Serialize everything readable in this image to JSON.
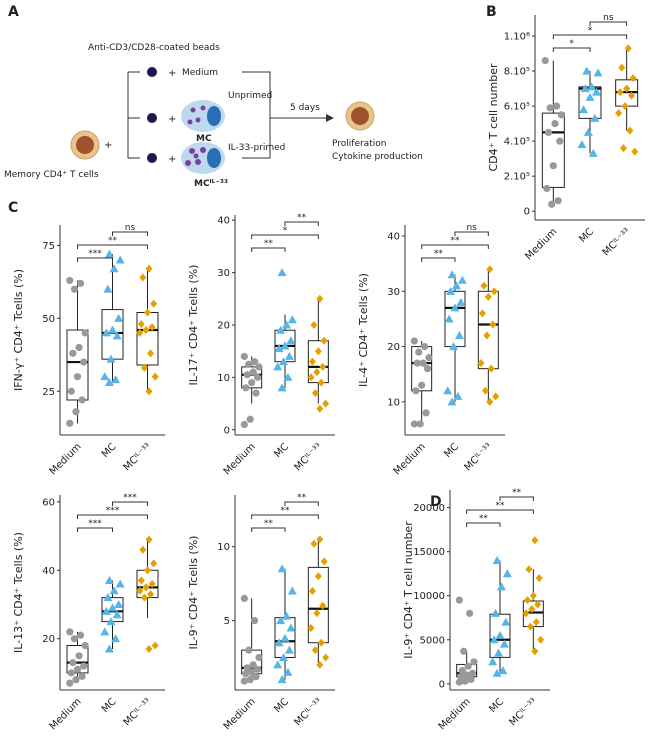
{
  "panel_labels": [
    "A",
    "B",
    "C",
    "D"
  ],
  "diagram": {
    "beads_label": "Anti-CD3/CD28-coated beads",
    "plus": "+",
    "medium_label": "Medium",
    "unprimed_label": "Unprimed",
    "mc_label": "MC",
    "primed_label": "IL-33-primed",
    "mc_il33_label": "MCᴵᴸ⁻³³",
    "cell_label": "Memory CD4⁺ T cells",
    "time_label": "5 days",
    "outcomes": [
      "Proliferation",
      "Cytokine production"
    ]
  },
  "chart_data": [
    {
      "type": "box",
      "y_label": "CD4⁺ T cell number",
      "categories": [
        "Medium",
        "MC",
        "MCᴵᴸ⁻³³"
      ],
      "ylim": [
        -50000,
        1120000
      ],
      "yticks": [
        0,
        {
          "value": 200000,
          "label": "2.10⁵"
        },
        {
          "value": 400000,
          "label": "4.10⁵"
        },
        {
          "value": 600000,
          "label": "6.10⁵"
        },
        {
          "value": 800000,
          "label": "8.10⁵"
        },
        {
          "value": 1000000,
          "label": "1.10⁶"
        }
      ],
      "grid": false,
      "boxes": [
        {
          "color": "#999999",
          "marker": "circle",
          "q1": 136000,
          "median": 450000,
          "q3": 560000,
          "whisker_low": 40000,
          "whisker_high": 860000,
          "points": [
            860000,
            600000,
            590000,
            550000,
            500000,
            450000,
            400000,
            260000,
            130000,
            60000,
            40000
          ]
        },
        {
          "color": "#56b4e9",
          "marker": "triangle",
          "q1": 530000,
          "median": 700000,
          "q3": 710000,
          "whisker_low": 330000,
          "whisker_high": 800000,
          "points": [
            800000,
            790000,
            710000,
            700000,
            680000,
            650000,
            580000,
            530000,
            450000,
            380000,
            330000
          ]
        },
        {
          "color": "#e69f00",
          "marker": "diamond",
          "q1": 600000,
          "median": 680000,
          "q3": 750000,
          "whisker_low": 460000,
          "whisker_high": 930000,
          "points": [
            930000,
            820000,
            760000,
            700000,
            680000,
            660000,
            600000,
            560000,
            460000,
            360000,
            340000
          ]
        }
      ],
      "comparisons": [
        {
          "groups": [
            "Medium",
            "MC"
          ],
          "label": "*"
        },
        {
          "groups": [
            "Medium",
            "MCᴵᴸ⁻³³"
          ],
          "label": "*"
        },
        {
          "groups": [
            "MC",
            "MCᴵᴸ⁻³³"
          ],
          "label": "ns"
        }
      ]
    },
    {
      "type": "box",
      "y_label": "IFN-γ⁺ CD4⁺ Tcells (%)",
      "categories": [
        "Medium",
        "MC",
        "MCᴵᴸ⁻³³"
      ],
      "ylim": [
        10,
        82
      ],
      "yticks": [
        25,
        50,
        75
      ],
      "grid": false,
      "boxes": [
        {
          "color": "#999999",
          "marker": "circle",
          "q1": 22,
          "median": 35,
          "q3": 46,
          "whisker_low": 14,
          "whisker_high": 63,
          "points": [
            63,
            62,
            60,
            45,
            40,
            38,
            35,
            30,
            25,
            22,
            18,
            14
          ]
        },
        {
          "color": "#56b4e9",
          "marker": "triangle",
          "q1": 36,
          "median": 45,
          "q3": 53,
          "whisker_low": 28,
          "whisker_high": 72,
          "points": [
            72,
            70,
            67,
            60,
            50,
            46,
            45,
            44,
            36,
            30,
            29,
            28
          ]
        },
        {
          "color": "#e69f00",
          "marker": "diamond",
          "q1": 34,
          "median": 46,
          "q3": 52,
          "whisker_low": 25,
          "whisker_high": 67,
          "points": [
            67,
            64,
            55,
            52,
            48,
            47,
            46,
            45,
            38,
            33,
            30,
            25
          ]
        }
      ],
      "comparisons": [
        {
          "groups": [
            "Medium",
            "MC"
          ],
          "label": "***"
        },
        {
          "groups": [
            "Medium",
            "MCᴵᴸ⁻³³"
          ],
          "label": "**"
        },
        {
          "groups": [
            "MC",
            "MCᴵᴸ⁻³³"
          ],
          "label": "ns"
        }
      ]
    },
    {
      "type": "box",
      "y_label": "IL-17⁺ CD4⁺ Tcells (%)",
      "categories": [
        "Medium",
        "MC",
        "MCᴵᴸ⁻³³"
      ],
      "ylim": [
        -1,
        41
      ],
      "yticks": [
        0,
        10,
        20,
        30,
        40
      ],
      "grid": false,
      "boxes": [
        {
          "color": "#999999",
          "marker": "circle",
          "q1": 8,
          "median": 10.5,
          "q3": 12,
          "whisker_low": 5,
          "whisker_high": 14,
          "points": [
            14,
            13,
            12.5,
            12,
            11,
            10.5,
            10,
            9,
            8,
            7,
            2,
            1
          ]
        },
        {
          "color": "#56b4e9",
          "marker": "triangle",
          "q1": 13,
          "median": 16,
          "q3": 19,
          "whisker_low": 8,
          "whisker_high": 22,
          "points": [
            30,
            21,
            20,
            19,
            17,
            16,
            15.5,
            14,
            13,
            12,
            10,
            8
          ]
        },
        {
          "color": "#e69f00",
          "marker": "diamond",
          "q1": 9,
          "median": 12,
          "q3": 17,
          "whisker_low": 5,
          "whisker_high": 25,
          "points": [
            25,
            20,
            17,
            15,
            13,
            12,
            11,
            10,
            9,
            7,
            5,
            4
          ]
        }
      ],
      "comparisons": [
        {
          "groups": [
            "Medium",
            "MC"
          ],
          "label": "**"
        },
        {
          "groups": [
            "Medium",
            "MCᴵᴸ⁻³³"
          ],
          "label": "*"
        },
        {
          "groups": [
            "MC",
            "MCᴵᴸ⁻³³"
          ],
          "label": "**"
        }
      ]
    },
    {
      "type": "box",
      "y_label": "IL-4⁺ CD4⁺ Tcells (%)",
      "categories": [
        "Medium",
        "MC",
        "MCᴵᴸ⁻³³"
      ],
      "ylim": [
        4,
        42
      ],
      "yticks": [
        10,
        20,
        30,
        40
      ],
      "grid": false,
      "boxes": [
        {
          "color": "#999999",
          "marker": "circle",
          "q1": 12,
          "median": 17,
          "q3": 20,
          "whisker_low": 6,
          "whisker_high": 21,
          "points": [
            21,
            20,
            19,
            18,
            17,
            17,
            16,
            13,
            12,
            8,
            6,
            6
          ]
        },
        {
          "color": "#56b4e9",
          "marker": "triangle",
          "q1": 20,
          "median": 27,
          "q3": 30,
          "whisker_low": 10,
          "whisker_high": 33,
          "points": [
            33,
            32,
            31,
            30,
            28,
            27,
            25,
            22,
            20,
            12,
            11,
            10
          ]
        },
        {
          "color": "#e69f00",
          "marker": "diamond",
          "q1": 16,
          "median": 24,
          "q3": 30,
          "whisker_low": 10,
          "whisker_high": 34,
          "points": [
            34,
            31,
            30,
            29,
            26,
            24,
            22,
            17,
            16,
            12,
            11,
            10
          ]
        }
      ],
      "comparisons": [
        {
          "groups": [
            "Medium",
            "MC"
          ],
          "label": "**"
        },
        {
          "groups": [
            "Medium",
            "MCᴵᴸ⁻³³"
          ],
          "label": "**"
        },
        {
          "groups": [
            "MC",
            "MCᴵᴸ⁻³³"
          ],
          "label": "ns"
        }
      ]
    },
    {
      "type": "box",
      "y_label": "IL-13⁺ CD4⁺ Tcells (%)",
      "categories": [
        "Medium",
        "MC",
        "MCᴵᴸ⁻³³"
      ],
      "ylim": [
        5,
        62
      ],
      "yticks": [
        20,
        40,
        60
      ],
      "grid": false,
      "boxes": [
        {
          "color": "#999999",
          "marker": "circle",
          "q1": 10,
          "median": 13,
          "q3": 18,
          "whisker_low": 7,
          "whisker_high": 22,
          "points": [
            22,
            21,
            20,
            18,
            15,
            13,
            12,
            11,
            10,
            9,
            8,
            7
          ]
        },
        {
          "color": "#56b4e9",
          "marker": "triangle",
          "q1": 25,
          "median": 28,
          "q3": 32,
          "whisker_low": 17,
          "whisker_high": 37,
          "points": [
            37,
            36,
            34,
            32,
            30,
            29,
            28,
            27,
            25,
            22,
            20,
            17
          ]
        },
        {
          "color": "#e69f00",
          "marker": "diamond",
          "q1": 32,
          "median": 35,
          "q3": 40,
          "whisker_low": 26,
          "whisker_high": 49,
          "points": [
            49,
            46,
            42,
            40,
            37,
            36,
            35,
            34,
            33,
            32,
            18,
            17
          ]
        }
      ],
      "comparisons": [
        {
          "groups": [
            "Medium",
            "MC"
          ],
          "label": "***"
        },
        {
          "groups": [
            "Medium",
            "MCᴵᴸ⁻³³"
          ],
          "label": "***"
        },
        {
          "groups": [
            "MC",
            "MCᴵᴸ⁻³³"
          ],
          "label": "***"
        }
      ]
    },
    {
      "type": "box",
      "y_label": "IL-9⁺ CD4⁺ Tcells (%)",
      "categories": [
        "Medium",
        "MC",
        "MCᴵᴸ⁻³³"
      ],
      "ylim": [
        0.3,
        13.5
      ],
      "yticks": [
        5,
        10
      ],
      "grid": false,
      "boxes": [
        {
          "color": "#999999",
          "marker": "circle",
          "q1": 1.4,
          "median": 1.8,
          "q3": 3,
          "whisker_low": 0.9,
          "whisker_high": 6.5,
          "points": [
            6.5,
            5,
            3,
            2.5,
            2,
            1.8,
            1.7,
            1.5,
            1.4,
            1.2,
            1,
            0.9
          ]
        },
        {
          "color": "#56b4e9",
          "marker": "triangle",
          "q1": 2.5,
          "median": 3.6,
          "q3": 5.2,
          "whisker_low": 1,
          "whisker_high": 8.5,
          "points": [
            8.5,
            7,
            5.3,
            5,
            4.5,
            3.8,
            3.5,
            3,
            2.5,
            2,
            1.5,
            1
          ]
        },
        {
          "color": "#e69f00",
          "marker": "diamond",
          "q1": 3.5,
          "median": 5.8,
          "q3": 8.6,
          "whisker_low": 2,
          "whisker_high": 10.5,
          "points": [
            10.5,
            10.2,
            9,
            8,
            7,
            6,
            5.5,
            4.5,
            3.5,
            3,
            2.5,
            2
          ]
        }
      ],
      "comparisons": [
        {
          "groups": [
            "Medium",
            "MC"
          ],
          "label": "**"
        },
        {
          "groups": [
            "Medium",
            "MCᴵᴸ⁻³³"
          ],
          "label": "**"
        },
        {
          "groups": [
            "MC",
            "MCᴵᴸ⁻³³"
          ],
          "label": "**"
        }
      ]
    },
    {
      "type": "box",
      "y_label": "IL-9⁺ CD4⁺ T cell number",
      "categories": [
        "Medium",
        "MC",
        "MCᴵᴸ⁻³³"
      ],
      "ylim": [
        -700,
        22000
      ],
      "yticks": [
        0,
        5000,
        10000,
        15000,
        20000
      ],
      "grid": false,
      "boxes": [
        {
          "color": "#999999",
          "marker": "circle",
          "q1": 800,
          "median": 1200,
          "q3": 2200,
          "whisker_low": 200,
          "whisker_high": 3700,
          "points": [
            9500,
            8000,
            3700,
            2500,
            2000,
            1500,
            1200,
            1000,
            800,
            500,
            300,
            200
          ]
        },
        {
          "color": "#56b4e9",
          "marker": "triangle",
          "q1": 3000,
          "median": 5000,
          "q3": 7900,
          "whisker_low": 1200,
          "whisker_high": 14000,
          "points": [
            14000,
            12500,
            11000,
            8000,
            7000,
            5500,
            5000,
            4500,
            3500,
            2500,
            1500,
            1200
          ]
        },
        {
          "color": "#e69f00",
          "marker": "diamond",
          "q1": 6500,
          "median": 8100,
          "q3": 9400,
          "whisker_low": 3700,
          "whisker_high": 13000,
          "points": [
            16300,
            13000,
            12000,
            10000,
            9500,
            9000,
            8500,
            8000,
            7000,
            6500,
            5000,
            3700
          ]
        }
      ],
      "comparisons": [
        {
          "groups": [
            "Medium",
            "MC"
          ],
          "label": "**"
        },
        {
          "groups": [
            "Medium",
            "MCᴵᴸ⁻³³"
          ],
          "label": "**"
        },
        {
          "groups": [
            "MC",
            "MCᴵᴸ⁻³³"
          ],
          "label": "**"
        }
      ]
    }
  ]
}
